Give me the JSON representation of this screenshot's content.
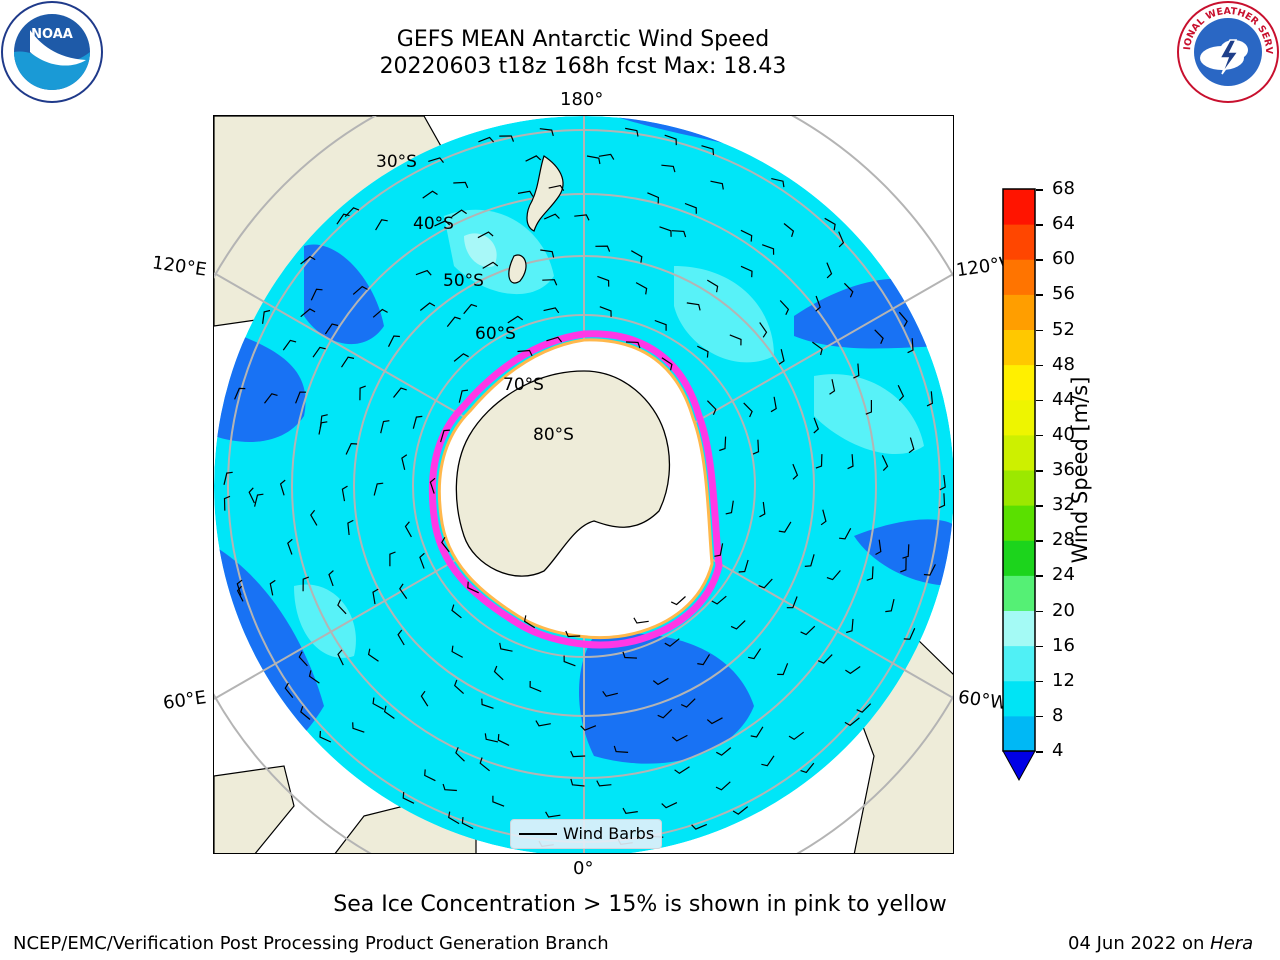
{
  "header": {
    "title_line1": "GEFS MEAN Antarctic Wind Speed",
    "title_line2": "20220603 t18z 168h fcst   Max: 18.43"
  },
  "logos": {
    "left": "noaa-logo",
    "left_text": "NOAA",
    "right": "national-weather-service-logo",
    "right_text": "NATIONAL WEATHER SERVICE"
  },
  "map": {
    "projection": "south-polar-stereographic",
    "longitude_labels": {
      "top": "180°",
      "upper_left": "120°E",
      "upper_right": "120°W",
      "lower_left": "60°E",
      "lower_right": "60°W",
      "bottom": "0°"
    },
    "latitude_labels": [
      "30°S",
      "40°S",
      "50°S",
      "60°S",
      "70°S",
      "80°S"
    ],
    "legend": {
      "label": "Wind Barbs"
    }
  },
  "colorbar": {
    "label": "Wind Speed [m/s]",
    "ticks": [
      "4",
      "8",
      "12",
      "16",
      "20",
      "24",
      "28",
      "32",
      "36",
      "40",
      "44",
      "48",
      "52",
      "56",
      "60",
      "64",
      "68"
    ],
    "colors": [
      "#0a6cf0",
      "#00b8f5",
      "#00e4f5",
      "#50f0f5",
      "#a4faf5",
      "#55f075",
      "#1cd41c",
      "#5ae000",
      "#9ce800",
      "#cdf000",
      "#eef500",
      "#fff000",
      "#ffc800",
      "#ff9e00",
      "#ff7400",
      "#ff4600",
      "#ff1400"
    ],
    "extend_color": "#0000e6"
  },
  "colors": {
    "land": "#eeecd9",
    "ice_shelf": "#ffffff",
    "wind_8_12": "#00e6f8",
    "wind_4_8": "#1872f4",
    "wind_12_16": "#58f2f8",
    "wind_16_20": "#a8f8f8",
    "sea_ice_edge": "#ff38e6",
    "sea_ice_inner": "#ffb84c",
    "gridline": "#b4b4b4"
  },
  "footer": {
    "note": "Sea Ice Concentration > 15% is shown in pink to yellow",
    "credit": "NCEP/EMC/Verification Post Processing Product Generation Branch",
    "date_prefix": "04 Jun 2022 on ",
    "date_machine": "Hera"
  }
}
